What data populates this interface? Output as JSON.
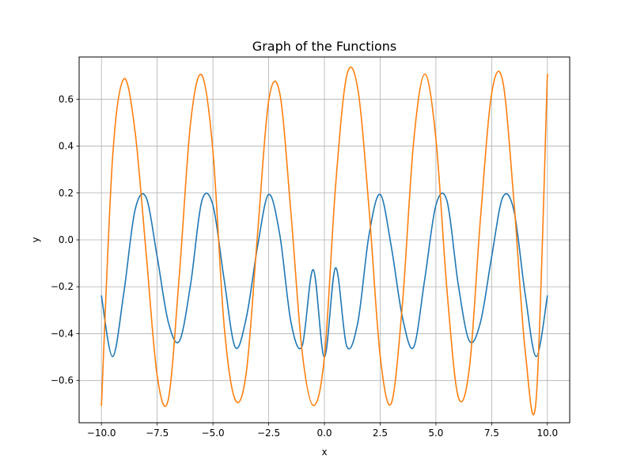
{
  "chart_data": {
    "type": "line",
    "title": "Graph of the Functions",
    "xlabel": "x",
    "ylabel": "y",
    "xlim": [
      -11.0,
      11.0
    ],
    "ylim": [
      -0.78,
      0.78
    ],
    "grid": true,
    "xticks": [
      -10.0,
      -7.5,
      -5.0,
      -2.5,
      0.0,
      2.5,
      5.0,
      7.5,
      10.0
    ],
    "xtick_labels": [
      "−10.0",
      "−7.5",
      "−5.0",
      "−2.5",
      "0.0",
      "2.5",
      "5.0",
      "7.5",
      "10.0"
    ],
    "yticks": [
      -0.6,
      -0.4,
      -0.2,
      0.0,
      0.2,
      0.4,
      0.6
    ],
    "ytick_labels": [
      "−0.6",
      "−0.4",
      "−0.2",
      "0.0",
      "0.2",
      "0.4",
      "0.6"
    ],
    "series": [
      {
        "color": "#1f77b4",
        "x": [
          -10.0,
          -9.5,
          -9.0,
          -8.5,
          -8.0,
          -7.5,
          -7.0,
          -6.5,
          -6.0,
          -5.5,
          -5.0,
          -4.5,
          -4.0,
          -3.5,
          -3.0,
          -2.5,
          -2.0,
          -1.5,
          -1.0,
          -0.5,
          0.0,
          0.5,
          1.0,
          1.5,
          2.0,
          2.5,
          3.0,
          3.5,
          4.0,
          4.5,
          5.0,
          5.5,
          6.0,
          6.5,
          7.0,
          7.5,
          8.0,
          8.5,
          9.0,
          9.5,
          10.0
        ],
        "y": [
          -0.239,
          -0.498,
          -0.229,
          0.124,
          0.182,
          -0.072,
          -0.351,
          -0.431,
          -0.189,
          0.165,
          0.148,
          -0.167,
          -0.458,
          -0.331,
          -0.029,
          0.194,
          0.021,
          -0.351,
          -0.453,
          -0.127,
          -0.5,
          -0.119,
          -0.453,
          -0.351,
          0.021,
          0.194,
          -0.029,
          -0.331,
          -0.458,
          -0.167,
          0.148,
          0.165,
          -0.189,
          -0.431,
          -0.351,
          -0.072,
          0.182,
          0.124,
          -0.229,
          -0.498,
          -0.239
        ]
      },
      {
        "color": "#ff7f0e",
        "x": [
          -10.0,
          -9.5,
          -9.0,
          -8.5,
          -8.0,
          -7.5,
          -7.0,
          -6.5,
          -6.0,
          -5.5,
          -5.0,
          -4.5,
          -4.0,
          -3.5,
          -3.0,
          -2.5,
          -2.0,
          -1.5,
          -1.0,
          -0.5,
          0.0,
          0.5,
          1.0,
          1.5,
          2.0,
          2.5,
          3.0,
          3.5,
          4.0,
          4.5,
          5.0,
          5.5,
          6.0,
          6.5,
          7.0,
          7.5,
          8.0,
          8.5,
          9.0,
          9.5,
          10.0
        ],
        "y": [
          -0.707,
          0.35,
          0.686,
          0.469,
          -0.05,
          -0.579,
          -0.68,
          -0.142,
          0.501,
          0.703,
          0.379,
          -0.362,
          -0.682,
          -0.563,
          0.023,
          0.593,
          0.624,
          0.114,
          -0.476,
          -0.706,
          -0.5,
          0.229,
          0.7,
          0.642,
          0.135,
          -0.494,
          -0.697,
          -0.271,
          0.417,
          0.707,
          0.431,
          -0.219,
          -0.669,
          -0.547,
          0.093,
          0.624,
          0.676,
          0.164,
          -0.469,
          -0.676,
          0.707
        ]
      }
    ]
  }
}
